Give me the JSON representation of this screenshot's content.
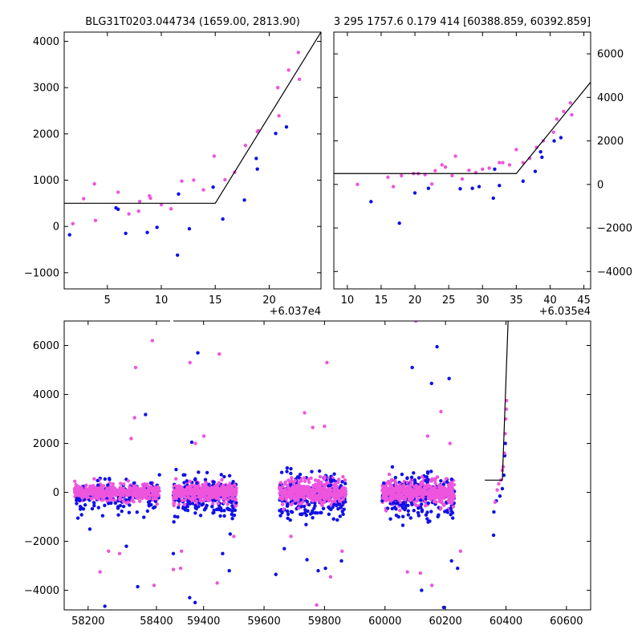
{
  "chart_data": [
    {
      "type": "scatter",
      "title": "BLG31T0203.044734 (1659.00, 2813.90)",
      "offset_label": "+6.037e4",
      "xlim": [
        1,
        24.8
      ],
      "ylim": [
        -1350,
        4200
      ],
      "xticks": [
        5,
        10,
        15,
        20
      ],
      "yticks": [
        -1000,
        0,
        1000,
        2000,
        3000,
        4000
      ],
      "tick_side": "left",
      "colors": {
        "blue": "#1010e8",
        "magenta": "#ee55dd"
      },
      "fit_line": [
        [
          1,
          500
        ],
        [
          15,
          500
        ],
        [
          24.8,
          4200
        ]
      ],
      "series": [
        {
          "color_key": "blue",
          "points": [
            [
              1.5,
              -180
            ],
            [
              5.8,
              400
            ],
            [
              6.0,
              370
            ],
            [
              6.7,
              -150
            ],
            [
              8.7,
              -130
            ],
            [
              9.6,
              -20
            ],
            [
              11.5,
              -620
            ],
            [
              11.6,
              700
            ],
            [
              12.6,
              -50
            ],
            [
              14.8,
              850
            ],
            [
              15.7,
              160
            ],
            [
              17.7,
              570
            ],
            [
              18.8,
              1470
            ],
            [
              18.9,
              1240
            ],
            [
              20.6,
              2010
            ],
            [
              21.6,
              2150
            ]
          ]
        },
        {
          "color_key": "magenta",
          "points": [
            [
              1.8,
              60
            ],
            [
              2.8,
              600
            ],
            [
              3.8,
              920
            ],
            [
              3.9,
              130
            ],
            [
              6.0,
              740
            ],
            [
              7.0,
              270
            ],
            [
              7.9,
              330
            ],
            [
              8.0,
              540
            ],
            [
              8.9,
              660
            ],
            [
              9.0,
              610
            ],
            [
              10.0,
              470
            ],
            [
              10.9,
              380
            ],
            [
              11.9,
              980
            ],
            [
              13.0,
              1000
            ],
            [
              13.9,
              790
            ],
            [
              14.9,
              1520
            ],
            [
              15.9,
              1010
            ],
            [
              16.8,
              1170
            ],
            [
              17.8,
              1750
            ],
            [
              18.9,
              2050
            ],
            [
              19.0,
              2070
            ],
            [
              20.9,
              2390
            ],
            [
              20.8,
              3000
            ],
            [
              21.8,
              3380
            ],
            [
              22.7,
              3760
            ],
            [
              22.8,
              3180
            ]
          ]
        }
      ]
    },
    {
      "type": "scatter",
      "title": "3 295 1757.6 0.179 414 [60388.859, 60392.859]",
      "offset_label": "+6.035e4",
      "xlim": [
        8,
        46
      ],
      "ylim": [
        -4800,
        7000
      ],
      "xticks": [
        10,
        15,
        20,
        25,
        30,
        35,
        40,
        45
      ],
      "yticks": [
        -4000,
        -2000,
        0,
        2000,
        4000,
        6000
      ],
      "tick_side": "right",
      "colors": {
        "blue": "#1010e8",
        "magenta": "#ee55dd"
      },
      "fit_line": [
        [
          8,
          500
        ],
        [
          35,
          500
        ],
        [
          46,
          4700
        ]
      ],
      "series": [
        {
          "color_key": "blue",
          "points": [
            [
              13.5,
              -790
            ],
            [
              17.7,
              -1780
            ],
            [
              20,
              -390
            ],
            [
              22,
              -180
            ],
            [
              26.7,
              -200
            ],
            [
              28.5,
              -180
            ],
            [
              29.5,
              -100
            ],
            [
              31.6,
              -630
            ],
            [
              32.5,
              -50
            ],
            [
              31.8,
              700
            ],
            [
              36,
              150
            ],
            [
              37.8,
              600
            ],
            [
              38.6,
              1500
            ],
            [
              38.8,
              1250
            ],
            [
              40.6,
              2000
            ],
            [
              41.6,
              2150
            ]
          ]
        },
        {
          "color_key": "magenta",
          "points": [
            [
              11.5,
              0
            ],
            [
              16,
              330
            ],
            [
              16.8,
              -100
            ],
            [
              18,
              400
            ],
            [
              19.8,
              500
            ],
            [
              20.5,
              500
            ],
            [
              21.5,
              450
            ],
            [
              22.5,
              20
            ],
            [
              23,
              630
            ],
            [
              24,
              900
            ],
            [
              24.5,
              800
            ],
            [
              25.5,
              400
            ],
            [
              26,
              1300
            ],
            [
              27,
              250
            ],
            [
              28,
              650
            ],
            [
              29,
              550
            ],
            [
              30,
              700
            ],
            [
              31,
              750
            ],
            [
              32.5,
              1000
            ],
            [
              33,
              1000
            ],
            [
              34,
              900
            ],
            [
              35,
              1600
            ],
            [
              36,
              1000
            ],
            [
              37,
              1200
            ],
            [
              38,
              1700
            ],
            [
              39,
              2000
            ],
            [
              40.5,
              2400
            ],
            [
              41,
              3000
            ],
            [
              42,
              3350
            ],
            [
              43,
              3750
            ],
            [
              43.2,
              3200
            ]
          ]
        }
      ]
    },
    {
      "type": "scatter",
      "xlim": [
        58130,
        60680
      ],
      "ylim": [
        -4800,
        7000
      ],
      "xticks": [
        58200,
        58400,
        59400,
        59600,
        59800,
        60000,
        60200,
        60400,
        60600
      ],
      "yticks": [
        -4000,
        -2000,
        0,
        2000,
        4000,
        6000
      ],
      "break": {
        "from": 58440,
        "to": 59300
      },
      "colors": {
        "blue": "#1010e8",
        "magenta": "#ee55dd"
      },
      "fit_line": [
        [
          60330,
          500
        ],
        [
          60388,
          500
        ],
        [
          60410,
          8000
        ]
      ],
      "dense_clusters": [
        {
          "x_range": [
            58160,
            58410
          ],
          "spread": 330,
          "density": 420
        },
        {
          "x_range": [
            59300,
            59510
          ],
          "spread": 360,
          "density": 460
        },
        {
          "x_range": [
            59650,
            59870
          ],
          "spread": 440,
          "density": 480
        },
        {
          "x_range": [
            59990,
            60230
          ],
          "spread": 440,
          "density": 480
        }
      ],
      "outliers": [
        {
          "color_key": "magenta",
          "points": [
            [
              58388,
              6200
            ],
            [
              58339,
              5100
            ],
            [
              58336,
              3050
            ],
            [
              58326,
              2200
            ],
            [
              58292,
              -2500
            ],
            [
              58235,
              -3250
            ],
            [
              58393,
              -3800
            ],
            [
              58260,
              -2400
            ]
          ]
        },
        {
          "color_key": "blue",
          "points": [
            [
              58368,
              3180
            ],
            [
              58249,
              -4650
            ],
            [
              58345,
              -3850
            ],
            [
              58205,
              -1500
            ],
            [
              58312,
              -2200
            ]
          ]
        },
        {
          "color_key": "magenta",
          "points": [
            [
              59355,
              5300
            ],
            [
              59452,
              5650
            ],
            [
              59324,
              -3100
            ],
            [
              59445,
              -3700
            ],
            [
              59327,
              -2400
            ],
            [
              59401,
              2300
            ],
            [
              59373,
              2000
            ],
            [
              59300,
              -3150
            ],
            [
              59500,
              -1800
            ]
          ]
        },
        {
          "color_key": "blue",
          "points": [
            [
              59381,
              5700
            ],
            [
              59361,
              2050
            ],
            [
              59354,
              -4300
            ],
            [
              59372,
              -4500
            ],
            [
              59463,
              -2500
            ],
            [
              59485,
              -3200
            ],
            [
              59300,
              -2500
            ],
            [
              59488,
              -1700
            ]
          ]
        },
        {
          "color_key": "magenta",
          "points": [
            [
              59808,
              5300
            ],
            [
              59734,
              3250
            ],
            [
              59761,
              2650
            ],
            [
              59800,
              2700
            ],
            [
              59820,
              -3450
            ],
            [
              59774,
              -4600
            ],
            [
              59689,
              -1800
            ],
            [
              59858,
              -2400
            ]
          ]
        },
        {
          "color_key": "blue",
          "points": [
            [
              59639,
              -3350
            ],
            [
              59742,
              -2750
            ],
            [
              59779,
              -3200
            ],
            [
              59803,
              -3100
            ],
            [
              59667,
              -2300
            ],
            [
              59856,
              -2800
            ]
          ]
        },
        {
          "color_key": "magenta",
          "points": [
            [
              60102,
              7000
            ],
            [
              60185,
              3300
            ],
            [
              60141,
              2300
            ],
            [
              60215,
              2000
            ],
            [
              60074,
              -3250
            ],
            [
              60155,
              -3800
            ],
            [
              60250,
              -2400
            ],
            [
              60117,
              -3300
            ]
          ]
        },
        {
          "color_key": "blue",
          "points": [
            [
              60172,
              5950
            ],
            [
              60090,
              5100
            ],
            [
              60212,
              4650
            ],
            [
              60154,
              4450
            ],
            [
              60194,
              -4700
            ],
            [
              60121,
              -4000
            ],
            [
              60240,
              -3100
            ],
            [
              60220,
              -2800
            ]
          ]
        },
        {
          "color_key": "blue",
          "points": [
            [
              60360,
              -800
            ],
            [
              60359,
              -1750
            ],
            [
              60368,
              -350
            ],
            [
              60380,
              -150
            ],
            [
              60388,
              150
            ],
            [
              60393,
              700
            ],
            [
              60396,
              1500
            ],
            [
              60398,
              2000
            ]
          ]
        },
        {
          "color_key": "magenta",
          "points": [
            [
              60364,
              -400
            ],
            [
              60371,
              100
            ],
            [
              60376,
              350
            ],
            [
              60383,
              500
            ],
            [
              60388,
              900
            ],
            [
              60391,
              1050
            ],
            [
              60395,
              1600
            ],
            [
              60397,
              2400
            ],
            [
              60399,
              3000
            ],
            [
              60401,
              3400
            ],
            [
              60402,
              3750
            ]
          ]
        }
      ]
    }
  ]
}
